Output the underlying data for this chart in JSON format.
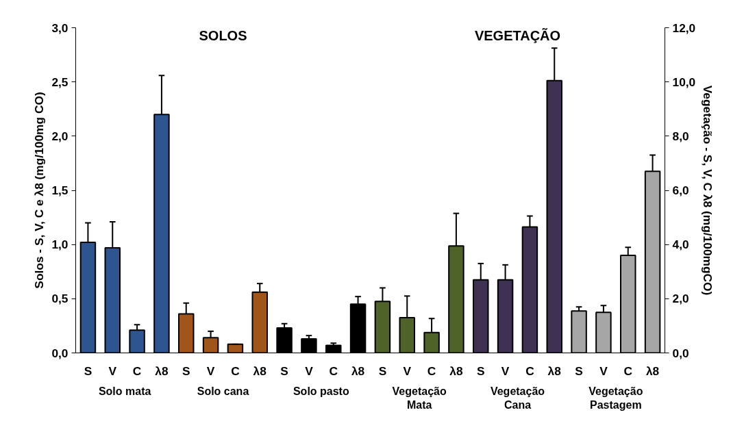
{
  "chart_data": {
    "type": "bar",
    "ylabel": "Solos - S, V, C e λ8 (mg/100mg CO)",
    "y2label": "Vegetação - S, V, C λ8 (mg/100mgCO)",
    "annotations": [
      "SOLOS",
      "VEGETAÇÃO"
    ],
    "categories": [
      "S",
      "V",
      "C",
      "λ8",
      "S",
      "V",
      "C",
      "λ8",
      "S",
      "V",
      "C",
      "λ8",
      "S",
      "V",
      "C",
      "λ8",
      "S",
      "V",
      "C",
      "λ8",
      "S",
      "V",
      "C",
      "λ8"
    ],
    "ylim": [
      0,
      3
    ],
    "yticks": [
      {
        "value": 0,
        "label": "0,0"
      },
      {
        "value": 0.5,
        "label": "0,5"
      },
      {
        "value": 1,
        "label": "1,0"
      },
      {
        "value": 1.5,
        "label": "1,5"
      },
      {
        "value": 2,
        "label": "2,0"
      },
      {
        "value": 2.5,
        "label": "2,5"
      },
      {
        "value": 3,
        "label": "3,0"
      }
    ],
    "y2lim": [
      0,
      12
    ],
    "y2ticks": [
      {
        "value": 0,
        "label": "0,0"
      },
      {
        "value": 2,
        "label": "2,0"
      },
      {
        "value": 4,
        "label": "4,0"
      },
      {
        "value": 6,
        "label": "6,0"
      },
      {
        "value": 8,
        "label": "8,0"
      },
      {
        "value": 10,
        "label": "10,0"
      },
      {
        "value": 12,
        "label": "12,0"
      }
    ],
    "grid": false,
    "series": [
      {
        "name": "Solo mata",
        "color": "#2e5590",
        "values": [
          1.02,
          0.97,
          0.21,
          2.2,
          null,
          null,
          null,
          null,
          null,
          null,
          null,
          null,
          null,
          null,
          null,
          null,
          null,
          null,
          null,
          null,
          null,
          null,
          null,
          null
        ],
        "errors": [
          [
            1.02,
            1.2
          ],
          [
            0.97,
            1.21
          ],
          [
            0.21,
            0.26
          ],
          [
            2.2,
            2.56
          ],
          null,
          null,
          null,
          null,
          null,
          null,
          null,
          null,
          null,
          null,
          null,
          null,
          null,
          null,
          null,
          null,
          null,
          null,
          null,
          null
        ]
      },
      {
        "name": "Solo cana",
        "color": "#a0561a",
        "values": [
          null,
          null,
          null,
          null,
          0.36,
          0.14,
          0.08,
          0.56,
          null,
          null,
          null,
          null,
          null,
          null,
          null,
          null,
          null,
          null,
          null,
          null,
          null,
          null,
          null,
          null
        ],
        "errors": [
          null,
          null,
          null,
          null,
          [
            0.36,
            0.46
          ],
          [
            0.14,
            0.2
          ],
          [
            0.08,
            0.08
          ],
          [
            0.56,
            0.64
          ],
          null,
          null,
          null,
          null,
          null,
          null,
          null,
          null,
          null,
          null,
          null,
          null,
          null,
          null,
          null,
          null
        ]
      },
      {
        "name": "Solo pasto",
        "color": "#000000",
        "values": [
          null,
          null,
          null,
          null,
          null,
          null,
          null,
          null,
          0.23,
          0.13,
          0.07,
          0.45,
          null,
          null,
          null,
          null,
          null,
          null,
          null,
          null,
          null,
          null,
          null,
          null
        ],
        "errors": [
          null,
          null,
          null,
          null,
          null,
          null,
          null,
          null,
          [
            0.23,
            0.27
          ],
          [
            0.13,
            0.16
          ],
          [
            0.07,
            0.09
          ],
          [
            0.45,
            0.52
          ],
          null,
          null,
          null,
          null,
          null,
          null,
          null,
          null,
          null,
          null,
          null,
          null
        ]
      },
      {
        "name": "Vegetação\nMata",
        "color": "#4f6228",
        "axis": "y2",
        "values": [
          null,
          null,
          null,
          null,
          null,
          null,
          null,
          null,
          null,
          null,
          null,
          null,
          1.9,
          1.3,
          0.75,
          3.95,
          null,
          null,
          null,
          null,
          null,
          null,
          null,
          null
        ],
        "errors": [
          null,
          null,
          null,
          null,
          null,
          null,
          null,
          null,
          null,
          null,
          null,
          null,
          [
            1.9,
            2.4
          ],
          [
            1.3,
            2.1
          ],
          [
            0.75,
            1.27
          ],
          [
            3.95,
            5.15
          ],
          null,
          null,
          null,
          null,
          null,
          null,
          null,
          null
        ]
      },
      {
        "name": "Vegetação\nCana",
        "color": "#3f3151",
        "axis": "y2",
        "values": [
          null,
          null,
          null,
          null,
          null,
          null,
          null,
          null,
          null,
          null,
          null,
          null,
          null,
          null,
          null,
          null,
          2.7,
          2.7,
          4.65,
          10.05,
          null,
          null,
          null,
          null
        ],
        "errors": [
          null,
          null,
          null,
          null,
          null,
          null,
          null,
          null,
          null,
          null,
          null,
          null,
          null,
          null,
          null,
          null,
          [
            2.7,
            3.3
          ],
          [
            2.7,
            3.25
          ],
          [
            4.65,
            5.05
          ],
          [
            10.05,
            11.25
          ],
          null,
          null,
          null,
          null
        ]
      },
      {
        "name": "Vegetação\nPastagem",
        "color": "#a6a6a6",
        "axis": "y2",
        "values": [
          null,
          null,
          null,
          null,
          null,
          null,
          null,
          null,
          null,
          null,
          null,
          null,
          null,
          null,
          null,
          null,
          null,
          null,
          null,
          null,
          1.55,
          1.5,
          3.6,
          6.7
        ],
        "errors": [
          null,
          null,
          null,
          null,
          null,
          null,
          null,
          null,
          null,
          null,
          null,
          null,
          null,
          null,
          null,
          null,
          null,
          null,
          null,
          null,
          [
            1.55,
            1.7
          ],
          [
            1.5,
            1.75
          ],
          [
            3.6,
            3.9
          ],
          [
            6.7,
            7.3
          ]
        ]
      }
    ]
  }
}
